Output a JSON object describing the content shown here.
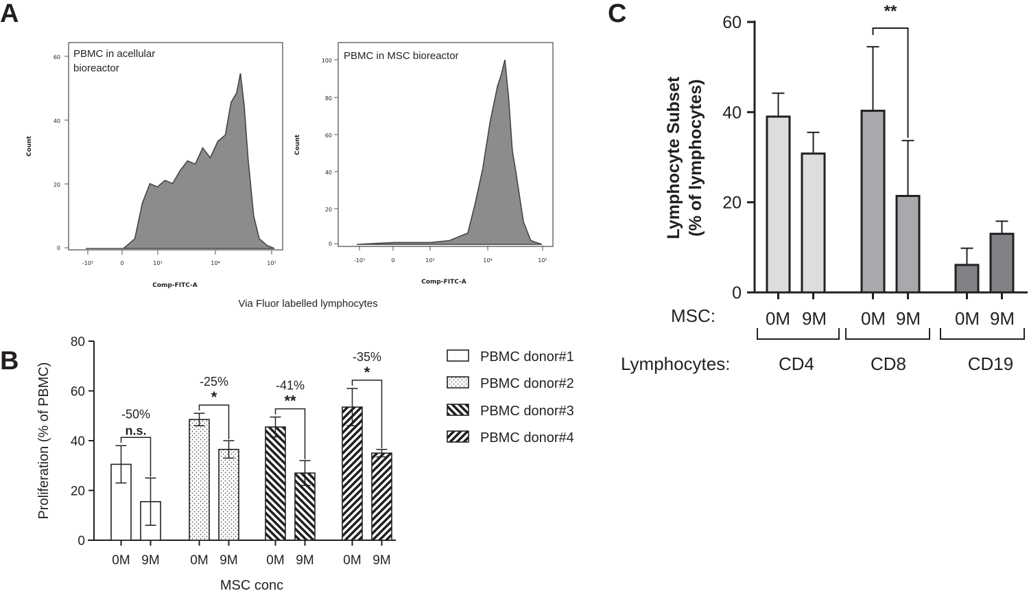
{
  "figure": {
    "panel_a_letter": "A",
    "panel_b_letter": "B",
    "panel_c_letter": "C"
  },
  "panel_a": {
    "caption": "Via Fluor labelled lymphocytes",
    "histograms": [
      {
        "label_line1": "PBMC in  acellular",
        "label_line2": "bioreactor",
        "ylabel": "Count",
        "xlabel": "Comp-FITC-A",
        "yticks": [
          "0",
          "20",
          "40",
          "60"
        ],
        "xticks": [
          "-10³",
          "0",
          "10³",
          "10⁴",
          "10⁵"
        ]
      },
      {
        "label_line1": "PBMC in MSC bioreactor",
        "ylabel": "Count",
        "xlabel": "Comp-FITC-A",
        "yticks": [
          "0",
          "20",
          "40",
          "60",
          "80",
          "100"
        ],
        "xticks": [
          "-10³",
          "0",
          "10³",
          "10⁴",
          "10⁵"
        ]
      }
    ],
    "colors": {
      "fill": "#8c8c8c",
      "frame": "#555555"
    }
  },
  "panel_b": {
    "xlabel": "MSC conc",
    "ylabel": "Proliferation (% of PBMC)",
    "yticks": [
      "0",
      "20",
      "40",
      "60",
      "80"
    ],
    "groups": [
      {
        "tick0": "0M",
        "tick9": "9M",
        "pct": "-50%",
        "sig": "n.s."
      },
      {
        "tick0": "0M",
        "tick9": "9M",
        "pct": "-25%",
        "sig": "*"
      },
      {
        "tick0": "0M",
        "tick9": "9M",
        "pct": "-41%",
        "sig": "**"
      },
      {
        "tick0": "0M",
        "tick9": "9M",
        "pct": "-35%",
        "sig": "*"
      }
    ],
    "legend": [
      "PBMC donor#1",
      "PBMC donor#2",
      "PBMC donor#3",
      "PBMC donor#4"
    ]
  },
  "panel_c": {
    "ylabel_line1": "Lymphocyte Subset",
    "ylabel_line2": "(% of lymphocytes)",
    "yticks": [
      "0",
      "20",
      "40",
      "60"
    ],
    "msc_label": "MSC:",
    "lymphocytes_label": "Lymphocytes:",
    "bar_labels": [
      "0M",
      "9M",
      "0M",
      "9M",
      "0M",
      "9M"
    ],
    "group_labels": [
      "CD4",
      "CD8",
      "CD19"
    ],
    "sig": "**"
  },
  "chart_data": [
    {
      "type": "area",
      "panel": "A-left",
      "title": "PBMC in  acellular bioreactor",
      "xlabel": "Comp-FITC-A",
      "ylabel": "Count",
      "xscale": "biexponential",
      "ylim": [
        0,
        62
      ],
      "x": [
        -1.0,
        0.0,
        0.3,
        0.5,
        0.7,
        0.9,
        1.1,
        1.3,
        1.5,
        1.7,
        1.9,
        2.1,
        2.3,
        2.5,
        2.7,
        2.85,
        3.0,
        3.1,
        3.2,
        3.3,
        3.45,
        3.6,
        3.8,
        4.0
      ],
      "y": [
        0,
        0,
        3,
        14,
        20,
        19,
        21,
        20,
        24,
        27,
        26,
        31,
        28,
        33,
        35,
        45,
        48,
        54,
        44,
        28,
        10,
        3,
        1,
        0
      ]
    },
    {
      "type": "area",
      "panel": "A-right",
      "title": "PBMC in MSC bioreactor",
      "xlabel": "Comp-FITC-A",
      "ylabel": "Count",
      "xscale": "biexponential",
      "ylim": [
        0,
        105
      ],
      "x": [
        -1.0,
        0.0,
        0.5,
        1.0,
        1.5,
        2.0,
        2.2,
        2.4,
        2.6,
        2.8,
        2.9,
        3.0,
        3.1,
        3.2,
        3.3,
        3.5,
        3.7,
        4.0
      ],
      "y": [
        0,
        1,
        1,
        1,
        2,
        6,
        22,
        40,
        65,
        84,
        90,
        98,
        78,
        50,
        38,
        12,
        2,
        0
      ]
    },
    {
      "type": "bar",
      "panel": "B",
      "title": "",
      "xlabel": "MSC conc",
      "ylabel": "Proliferation (% of PBMC)",
      "ylim": [
        0,
        80
      ],
      "categories": [
        "0M",
        "9M"
      ],
      "series": [
        {
          "name": "PBMC donor#1",
          "values": [
            30.5,
            15.5
          ],
          "errors": [
            7.5,
            9.5
          ],
          "pct_change": "-50%",
          "significance": "n.s."
        },
        {
          "name": "PBMC donor#2",
          "values": [
            48.5,
            36.5
          ],
          "errors": [
            2.5,
            3.5
          ],
          "pct_change": "-25%",
          "significance": "*"
        },
        {
          "name": "PBMC donor#3",
          "values": [
            45.5,
            27.0
          ],
          "errors": [
            4.0,
            5.0
          ],
          "pct_change": "-41%",
          "significance": "**"
        },
        {
          "name": "PBMC donor#4",
          "values": [
            53.5,
            35.0
          ],
          "errors": [
            7.5,
            1.5
          ],
          "pct_change": "-35%",
          "significance": "*"
        }
      ]
    },
    {
      "type": "bar",
      "panel": "C",
      "title": "",
      "xlabel": "Lymphocytes",
      "ylabel": "Lymphocyte Subset (% of lymphocytes)",
      "ylim": [
        0,
        60
      ],
      "categories": [
        "CD4",
        "CD8",
        "CD19"
      ],
      "series": [
        {
          "name": "0M",
          "values": [
            39.0,
            40.3,
            6.1
          ],
          "errors": [
            5.2,
            14.2,
            3.7
          ]
        },
        {
          "name": "9M",
          "values": [
            30.8,
            21.4,
            13.0
          ],
          "errors": [
            4.7,
            12.3,
            2.8
          ]
        }
      ],
      "significance": [
        {
          "group": "CD8",
          "label": "**"
        }
      ]
    }
  ]
}
